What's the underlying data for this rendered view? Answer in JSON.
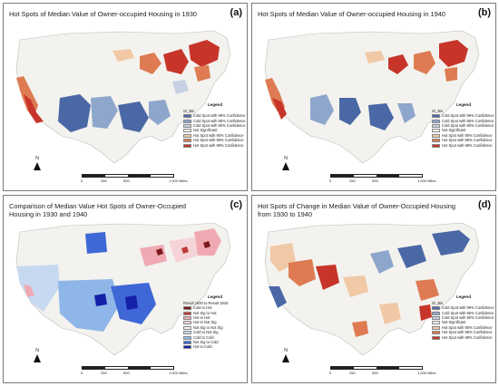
{
  "panels": [
    {
      "tag": "(a)",
      "title": "Hot Spots of Median Value of Owner-occupied Housing in 1930",
      "legend_title": "Legend",
      "field": "Gi_Bin",
      "items": [
        {
          "label": "Cold Spot with 99% Confidence",
          "color": "#4b68a6"
        },
        {
          "label": "Cold Spot with 95% Confidence",
          "color": "#8ea6cc"
        },
        {
          "label": "Cold Spot with 90% Confidence",
          "color": "#c6d2e3"
        },
        {
          "label": "Not Significant",
          "color": "#f3f2ee"
        },
        {
          "label": "Hot Spot with 90% Confidence",
          "color": "#f1c9a6"
        },
        {
          "label": "Hot Spot with 95% Confidence",
          "color": "#de7b52"
        },
        {
          "label": "Hot Spot with 99% Confidence",
          "color": "#c7352a"
        }
      ],
      "north": "N",
      "scale": [
        "0",
        "250",
        "500",
        "1,000 Miles"
      ]
    },
    {
      "tag": "(b)",
      "title": "Hot Spots of Median Value of Owner-occupied Housing in 1940",
      "legend_title": "Legend",
      "field": "Gi_Bin",
      "items": [
        {
          "label": "Cold Spot with 99% Confidence",
          "color": "#4b68a6"
        },
        {
          "label": "Cold Spot with 95% Confidence",
          "color": "#8ea6cc"
        },
        {
          "label": "Cold Spot with 90% Confidence",
          "color": "#c6d2e3"
        },
        {
          "label": "Not Significant",
          "color": "#f3f2ee"
        },
        {
          "label": "Hot Spot with 90% Confidence",
          "color": "#f1c9a6"
        },
        {
          "label": "Hot Spot with 95% Confidence",
          "color": "#de7b52"
        },
        {
          "label": "Hot Spot with 99% Confidence",
          "color": "#c7352a"
        }
      ],
      "north": "N",
      "scale": [
        "0",
        "250",
        "500",
        "1,000 Miles"
      ]
    },
    {
      "tag": "(c)",
      "title": "Comparison of Median Value Hot Spots of Owner-Occupied Housing in 1930 and 1940",
      "legend_title": "Legend",
      "field": "Result 1930 to Result 1940",
      "items": [
        {
          "label": "Cold to Hot",
          "color": "#7a1a1a"
        },
        {
          "label": "Not Sig to Hot",
          "color": "#c23b3b"
        },
        {
          "label": "Hot to Hot",
          "color": "#f0a9b2"
        },
        {
          "label": "Hot to Not Sig",
          "color": "#f6d3d7"
        },
        {
          "label": "Not Sig to Not Sig",
          "color": "#f3f2ee"
        },
        {
          "label": "Cold to Not Sig",
          "color": "#c6d9f1"
        },
        {
          "label": "Cold to Cold",
          "color": "#8fb6e8"
        },
        {
          "label": "Not Sig to Cold",
          "color": "#3f67d6"
        },
        {
          "label": "Hot to Cold",
          "color": "#1420a8"
        }
      ],
      "north": "N",
      "scale": [
        "0",
        "250",
        "500",
        "1,000 Miles"
      ]
    },
    {
      "tag": "(d)",
      "title": "Hot Spots of Change in Median Value of Owner-Occupied Housing from 1930 to 1940",
      "legend_title": "Legend",
      "field": "Gi_Bin",
      "items": [
        {
          "label": "Cold Spot with 99% Confidence",
          "color": "#4b68a6"
        },
        {
          "label": "Cold Spot with 95% Confidence",
          "color": "#8ea6cc"
        },
        {
          "label": "Cold Spot with 90% Confidence",
          "color": "#c6d2e3"
        },
        {
          "label": "Not Significant",
          "color": "#f3f2ee"
        },
        {
          "label": "Hot Spot with 90% Confidence",
          "color": "#f1c9a6"
        },
        {
          "label": "Hot Spot with 95% Confidence",
          "color": "#de7b52"
        },
        {
          "label": "Hot Spot with 99% Confidence",
          "color": "#c7352a"
        }
      ],
      "north": "N",
      "scale": [
        "0",
        "250",
        "500",
        "1,000 Miles"
      ]
    }
  ]
}
